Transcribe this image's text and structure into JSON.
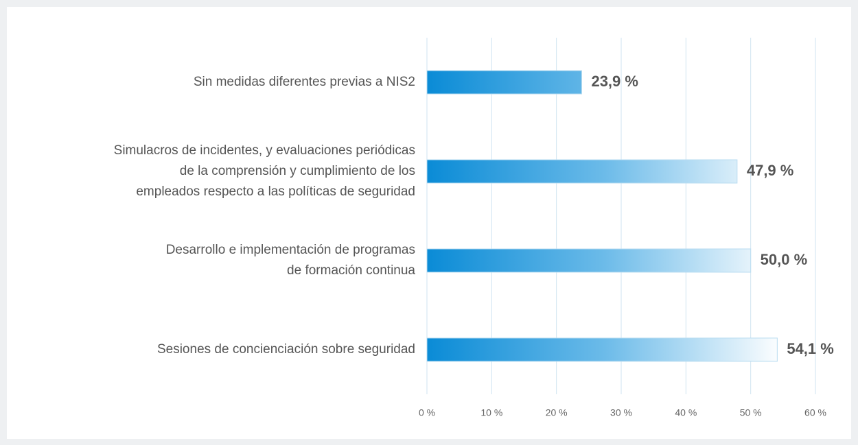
{
  "chart_data": {
    "type": "bar",
    "orientation": "horizontal",
    "categories": [
      [
        "Sin medidas diferentes previas a NIS2"
      ],
      [
        "Simulacros de incidentes, y evaluaciones periódicas",
        "de la comprensión y cumplimiento de los",
        "empleados respecto a las políticas de seguridad"
      ],
      [
        "Desarrollo e implementación de programas",
        "de formación continua"
      ],
      [
        "Sesiones de concienciación sobre seguridad"
      ]
    ],
    "values": [
      23.9,
      47.9,
      50.0,
      54.1
    ],
    "value_labels": [
      "23,9 %",
      "47,9 %",
      "50,0 %",
      "54,1 %"
    ],
    "color": "#0a8bd6",
    "xlim": [
      0,
      60
    ],
    "xticks": [
      {
        "value": 0,
        "label": "0 %"
      },
      {
        "value": 10,
        "label": "10 %"
      },
      {
        "value": 20,
        "label": "20 %"
      },
      {
        "value": 30,
        "label": "30 %"
      },
      {
        "value": 40,
        "label": "40 %"
      },
      {
        "value": 50,
        "label": "50 %"
      },
      {
        "value": 60,
        "label": "60 %"
      }
    ],
    "grid": true
  }
}
